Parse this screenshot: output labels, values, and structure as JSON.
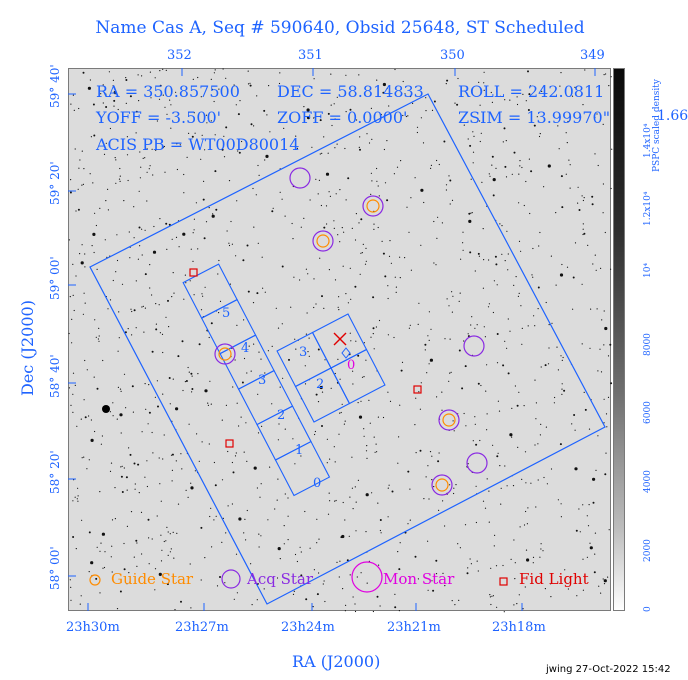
{
  "title": "Name Cas A, Seq # 590640, Obsid 25648, ST Scheduled",
  "info": {
    "ra": "RA = 350.857500",
    "dec": "DEC = 58.814833",
    "roll": "ROLL = 242.0811",
    "yoff": "YOFF = -3.500'",
    "zoff": "ZOFF = 0.0000'",
    "zsim": "ZSIM = 13.99970\"",
    "acis": "ACIS PB = WT00D80014"
  },
  "axes": {
    "xlabel": "RA (J2000)",
    "ylabel": "Dec (J2000)",
    "top_ticks": [
      "352",
      "351",
      "350",
      "349"
    ],
    "bottom_ticks": [
      "23h30m",
      "23h27m",
      "23h24m",
      "23h21m",
      "23h18m"
    ],
    "left_ticks": [
      "59° 40'",
      "59° 20'",
      "59° 00'",
      "58° 40'",
      "58° 20'",
      "58° 00'"
    ]
  },
  "colorbar": {
    "label": "PSPC scaled density",
    "ticks": [
      "0",
      "2000",
      "4000",
      "6000",
      "8000",
      "10⁴",
      "1.2x10⁴",
      "1.4x10⁴"
    ],
    "right_value": "1.66"
  },
  "chips": {
    "s_chips": [
      "5",
      "4",
      "3",
      "2",
      "1",
      "0"
    ],
    "i_chips": [
      "3",
      "2"
    ],
    "aimpoint_label": "0"
  },
  "legend": {
    "guide": "Guide Star",
    "acq": "Acq Star",
    "mon": "Mon Star",
    "fid": "Fid Light"
  },
  "colors": {
    "blue": "#1e63ff",
    "guide": "#ff8c00",
    "acq": "#8a2be2",
    "mon": "#e000e0",
    "fid": "#e00000"
  },
  "credit": "jwing 27-Oct-2022 15:42"
}
